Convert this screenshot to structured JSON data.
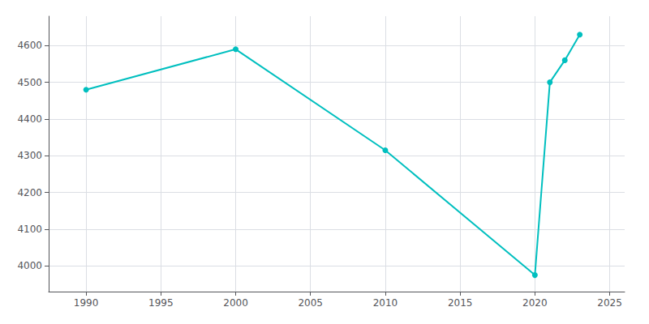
{
  "chart_data": {
    "type": "line",
    "x": [
      1990,
      2000,
      2010,
      2020,
      2021,
      2022,
      2023
    ],
    "values": [
      4480,
      4590,
      4315,
      3975,
      4500,
      4560,
      4630
    ],
    "color": "#00BFBF",
    "marker": "circle",
    "xlim": [
      1987.5,
      2026
    ],
    "xticks": [
      1990,
      1995,
      2000,
      2005,
      2010,
      2015,
      2020,
      2025
    ],
    "ylim": [
      3930,
      4680
    ],
    "yticks": [
      4000,
      4100,
      4200,
      4300,
      4400,
      4500,
      4600
    ],
    "grid": true
  }
}
